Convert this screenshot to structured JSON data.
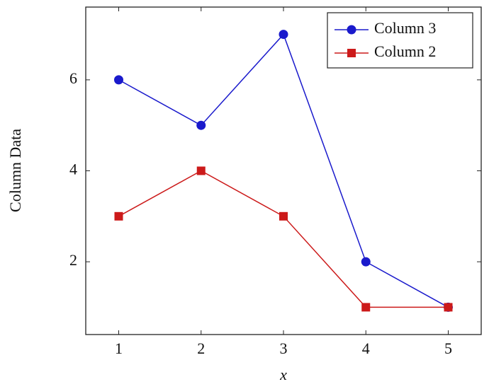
{
  "chart_data": {
    "type": "line",
    "x_label": "x",
    "y_label": "Column Data",
    "x": [
      1,
      2,
      3,
      4,
      5
    ],
    "series": [
      {
        "name": "Column 3",
        "color": "#1a1acc",
        "marker": "circle",
        "values": [
          6,
          5,
          7,
          2,
          1
        ]
      },
      {
        "name": "Column 2",
        "color": "#cc1a1a",
        "marker": "square",
        "values": [
          3,
          4,
          3,
          1,
          1
        ]
      }
    ],
    "xlim": [
      0.6,
      5.4
    ],
    "xticks": [
      1,
      2,
      3,
      4,
      5
    ],
    "ylim": [
      0.4,
      7.6
    ],
    "yticks": [
      2,
      4,
      6
    ],
    "grid": false,
    "legend": "top-right"
  }
}
